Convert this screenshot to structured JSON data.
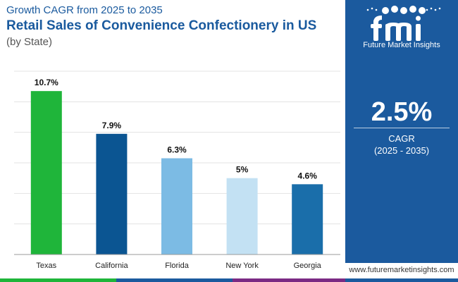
{
  "header": {
    "subtitle": "Growth CAGR from 2025 to 2035",
    "title": "Retail Sales of Convenience Confectionery in US",
    "byline": "(by State)"
  },
  "chart_data": {
    "type": "bar",
    "categories": [
      "Texas",
      "California",
      "Florida",
      "New York",
      "Georgia"
    ],
    "values": [
      10.7,
      7.9,
      6.3,
      5,
      4.6
    ],
    "data_labels": [
      "10.7%",
      "7.9%",
      "6.3%",
      "5%",
      "4.6%"
    ],
    "colors": [
      "#1fb53a",
      "#0b5592",
      "#7cbbe4",
      "#c3e1f3",
      "#1a6eaa"
    ],
    "ylim": [
      0,
      12
    ],
    "grid": true,
    "xlabel": "",
    "ylabel": ""
  },
  "sidebar": {
    "logo_text": "Future Market Insights",
    "value": "2.5%",
    "label": "CAGR",
    "period": "(2025 - 2035)",
    "bg_color": "#1b5a9e"
  },
  "footer": {
    "website": "www.futuremarketinsights.com",
    "bar_colors": [
      "#1fb53a",
      "#1b5a9e",
      "#7b2a84",
      "#1b5a9e"
    ]
  }
}
